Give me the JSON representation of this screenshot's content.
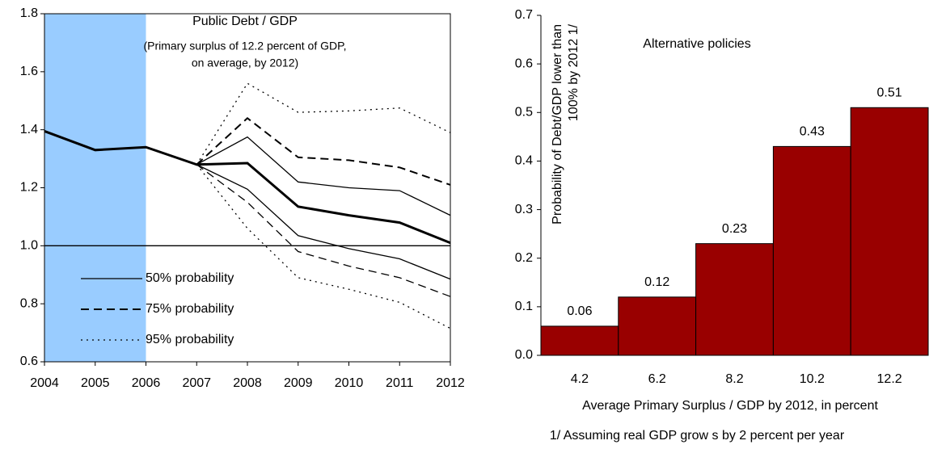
{
  "chart_data": [
    {
      "type": "line",
      "title": "Public Debt / GDP",
      "subtitle": [
        "(Primary surplus of 12.2 percent of GDP,",
        "on average, by 2012)"
      ],
      "x": [
        2004,
        2005,
        2006,
        2007,
        2008,
        2009,
        2010,
        2011,
        2012
      ],
      "xlim": [
        2004,
        2012
      ],
      "xticks": [
        2004,
        2005,
        2006,
        2007,
        2008,
        2009,
        2010,
        2011,
        2012
      ],
      "ylim": [
        0.6,
        1.8
      ],
      "yticks": [
        0.6,
        0.8,
        {
          "value": 1,
          "label": "1.0"
        },
        1.2,
        1.4,
        1.6,
        1.8
      ],
      "shade": [
        2004,
        2006
      ],
      "shade_color": "#99ccff",
      "hline": 1,
      "series": [
        {
          "color": "#000000",
          "dash": "solid",
          "width": 3,
          "values": [
            1.395,
            1.33,
            1.34,
            1.28,
            1.285,
            1.135,
            1.105,
            1.08,
            1.01
          ]
        },
        {
          "name": "50% probability",
          "color": "#000000",
          "dash": "solid",
          "width": 1.3,
          "values": [
            null,
            null,
            null,
            1.28,
            1.375,
            1.22,
            1.2,
            1.19,
            1.105
          ]
        },
        {
          "color": "#000000",
          "dash": "solid",
          "width": 1.3,
          "values": [
            null,
            null,
            null,
            1.28,
            1.195,
            1.035,
            0.99,
            0.955,
            0.885
          ]
        },
        {
          "name": "75% probability",
          "color": "#000000",
          "dash": "dashed",
          "width": 2,
          "values": [
            null,
            null,
            null,
            1.28,
            1.44,
            1.305,
            1.295,
            1.27,
            1.21
          ]
        },
        {
          "color": "#000000",
          "dash": "dashed",
          "width": 1.3,
          "values": [
            null,
            null,
            null,
            1.28,
            1.15,
            0.98,
            0.93,
            0.89,
            0.825
          ]
        },
        {
          "name": "95% probability",
          "color": "#000000",
          "dash": "dotted",
          "width": 1.3,
          "values": [
            null,
            null,
            null,
            1.28,
            1.56,
            1.46,
            1.465,
            1.475,
            1.39
          ]
        },
        {
          "color": "#000000",
          "dash": "dotted",
          "width": 1.3,
          "values": [
            null,
            null,
            null,
            1.28,
            1.06,
            0.89,
            0.85,
            0.805,
            0.715
          ]
        }
      ]
    },
    {
      "type": "bar",
      "title": "Alternative policies",
      "ylabel": [
        "Probability of Debt/GDP lower than",
        "100% by 2012 1/"
      ],
      "xlabel": "Average Primary Surplus / GDP by 2012, in percent",
      "footnote": "1/ Assuming real GDP grow s by 2 percent per year",
      "categories": [
        "4.2",
        "6.2",
        "8.2",
        "10.2",
        "12.2"
      ],
      "values": [
        0.06,
        0.12,
        0.23,
        0.43,
        0.51
      ],
      "color": "#990000",
      "ylim": [
        0,
        0.7
      ],
      "yticks": [
        {
          "value": 0,
          "label": "0.0"
        },
        0.1,
        0.2,
        0.3,
        0.4,
        0.5,
        0.6,
        0.7
      ]
    }
  ]
}
